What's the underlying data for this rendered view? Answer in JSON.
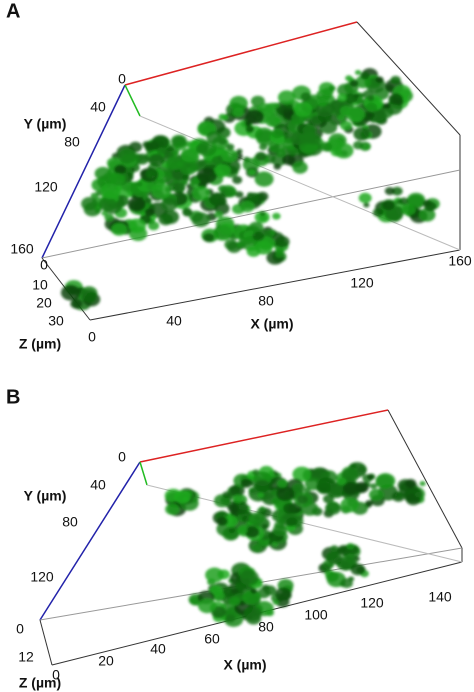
{
  "panels": [
    {
      "label": "A",
      "y_axis": {
        "title": "Y (µm)",
        "ticks": [
          "0",
          "40",
          "80",
          "120",
          "160"
        ]
      },
      "x_axis": {
        "title": "X (µm)",
        "ticks": [
          "0",
          "40",
          "80",
          "120",
          "160"
        ]
      },
      "z_axis": {
        "title": "Z (µm)",
        "ticks": [
          "0",
          "10",
          "20",
          "30"
        ]
      }
    },
    {
      "label": "B",
      "y_axis": {
        "title": "Y (µm)",
        "ticks": [
          "0",
          "40",
          "80",
          "120"
        ]
      },
      "x_axis": {
        "title": "X (µm)",
        "ticks": [
          "0",
          "20",
          "40",
          "60",
          "80",
          "100",
          "120",
          "140"
        ]
      },
      "z_axis": {
        "title": "Z (µm)",
        "ticks": [
          "0",
          "12"
        ]
      }
    }
  ]
}
